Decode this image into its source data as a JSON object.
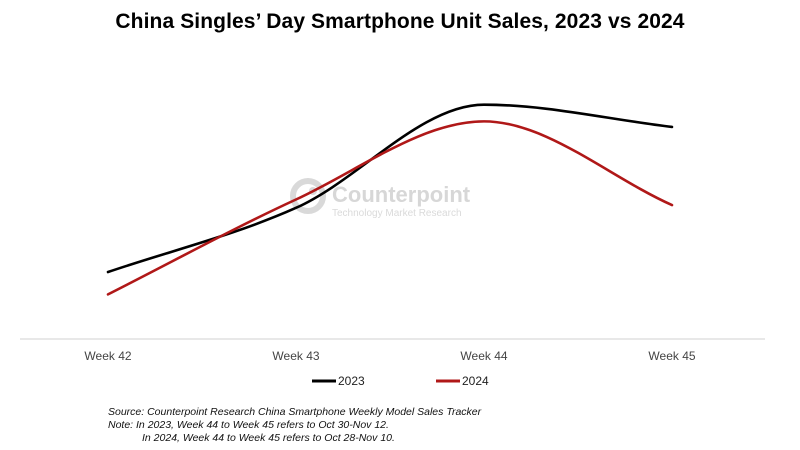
{
  "chart_data": {
    "type": "line",
    "title": "China Singles’ Day Smartphone Unit Sales, 2023 vs 2024",
    "categories": [
      "Week 42",
      "Week 43",
      "Week 44",
      "Week 45"
    ],
    "series": [
      {
        "name": "2023",
        "color": "#000000",
        "values": [
          24,
          47,
          84,
          76
        ]
      },
      {
        "name": "2024",
        "color": "#b01818",
        "values": [
          16,
          50,
          78,
          48
        ]
      }
    ],
    "ylim": [
      0,
      100
    ],
    "y_axis_labels": "none",
    "grid": false,
    "legend_position": "bottom"
  },
  "watermark": {
    "brand": "Counterpoint",
    "tagline": "Technology Market Research",
    "logo_icon": "counterpoint-logo-icon"
  },
  "notes": {
    "source": "Source: Counterpoint Research China Smartphone Weekly Model Sales Tracker",
    "note1": "Note: In 2023, Week 44 to Week 45 refers to Oct 30-Nov 12.",
    "note2": "In 2024, Week 44 to Week 45 refers to Oct 28-Nov 10."
  }
}
